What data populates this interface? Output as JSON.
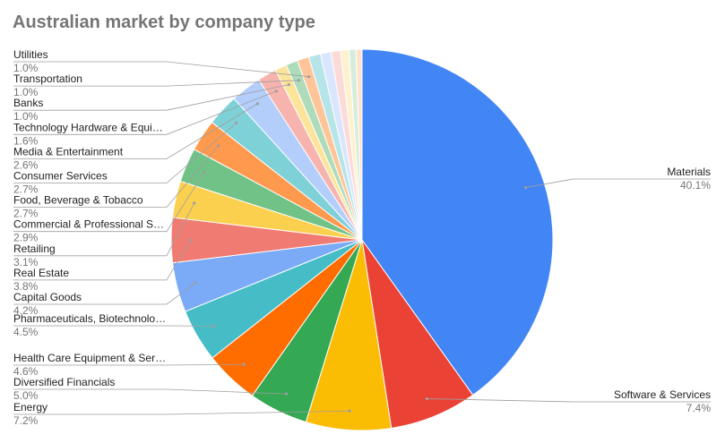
{
  "chart_data": {
    "type": "pie",
    "title": "Australian market by company type",
    "slices": [
      {
        "label": "Materials",
        "value": 40.1,
        "pct_text": "40.1%",
        "color": "#4285f4"
      },
      {
        "label": "Software & Services",
        "value": 7.4,
        "pct_text": "7.4%",
        "color": "#ea4335"
      },
      {
        "label": "Energy",
        "value": 7.2,
        "pct_text": "7.2%",
        "color": "#fbbc04"
      },
      {
        "label": "Diversified Financials",
        "value": 5.0,
        "pct_text": "5.0%",
        "color": "#34a853"
      },
      {
        "label": "Health Care Equipment & Ser…",
        "value": 4.6,
        "pct_text": "4.6%",
        "color": "#ff6d01"
      },
      {
        "label": "Pharmaceuticals, Biotechnolo…",
        "value": 4.5,
        "pct_text": "4.5%",
        "color": "#46bdc6"
      },
      {
        "label": "Capital Goods",
        "value": 4.2,
        "pct_text": "4.2%",
        "color": "#7baaf7"
      },
      {
        "label": "Real Estate",
        "value": 3.8,
        "pct_text": "3.8%",
        "color": "#f07b72"
      },
      {
        "label": "Retailing",
        "value": 3.1,
        "pct_text": "3.1%",
        "color": "#fcd04f"
      },
      {
        "label": "Commercial & Professional S…",
        "value": 2.9,
        "pct_text": "2.9%",
        "color": "#71c287"
      },
      {
        "label": "Food, Beverage & Tobacco",
        "value": 2.7,
        "pct_text": "2.7%",
        "color": "#ff994d"
      },
      {
        "label": "Consumer Services",
        "value": 2.7,
        "pct_text": "2.7%",
        "color": "#7ed1d7"
      },
      {
        "label": "Media & Entertainment",
        "value": 2.6,
        "pct_text": "2.6%",
        "color": "#b3cefb"
      },
      {
        "label": "Technology Hardware & Equi…",
        "value": 1.6,
        "pct_text": "1.6%",
        "color": "#f7b4ae"
      },
      {
        "label": "Banks",
        "value": 1.0,
        "pct_text": "1.0%",
        "color": "#fde49b"
      },
      {
        "label": "Transportation",
        "value": 1.0,
        "pct_text": "1.0%",
        "color": "#aedcba"
      },
      {
        "label": "Utilities",
        "value": 1.0,
        "pct_text": "1.0%",
        "color": "#ffc599"
      },
      {
        "value": 1.0,
        "color": "#b5e5e9"
      },
      {
        "value": 0.9,
        "color": "#d9e6fd"
      },
      {
        "value": 0.8,
        "color": "#fbdad7"
      },
      {
        "value": 0.7,
        "color": "#fef1cd"
      },
      {
        "value": 0.6,
        "color": "#d6eddc"
      },
      {
        "value": 0.5,
        "color": "#ffe2cc"
      }
    ],
    "legend": "labels with leader lines",
    "start_angle_deg": 0,
    "direction": "clockwise"
  }
}
